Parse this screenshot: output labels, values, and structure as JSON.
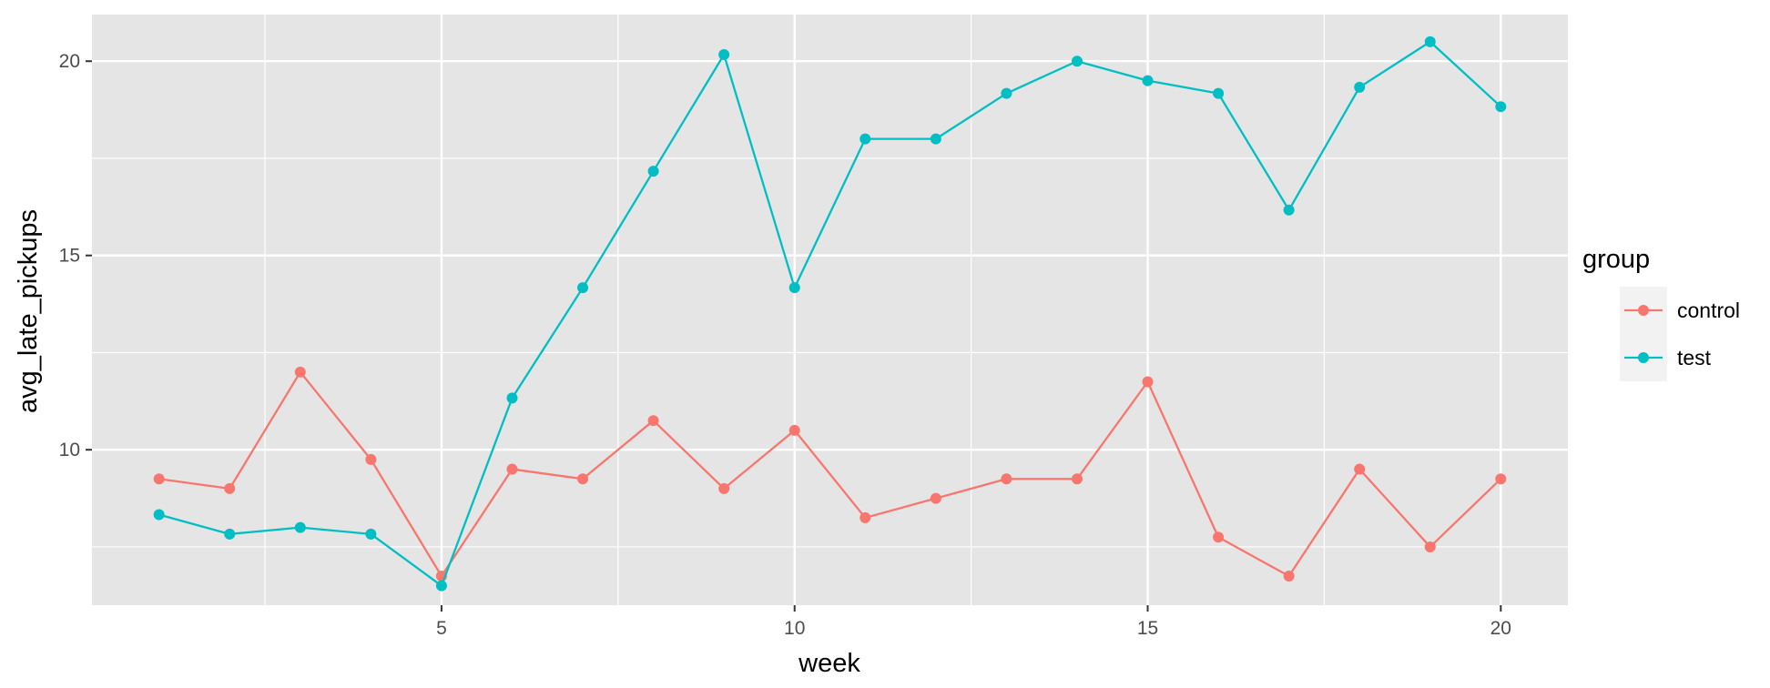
{
  "chart_data": {
    "type": "line",
    "xlabel": "week",
    "ylabel": "avg_late_pickups",
    "x": [
      1,
      2,
      3,
      4,
      5,
      6,
      7,
      8,
      9,
      10,
      11,
      12,
      13,
      14,
      15,
      16,
      17,
      18,
      19,
      20
    ],
    "xlim": [
      0.05,
      20.95
    ],
    "ylim": [
      6.0,
      21.2
    ],
    "xticks": [
      5,
      10,
      15,
      20
    ],
    "yticks": [
      10,
      15,
      20
    ],
    "xtick_labels": [
      "5",
      "10",
      "15",
      "20"
    ],
    "ytick_labels": [
      "10",
      "15",
      "20"
    ],
    "grid": true,
    "legend": {
      "title": "group",
      "position": "right"
    },
    "series": [
      {
        "name": "control",
        "color": "#F8766D",
        "values": [
          9.25,
          9.0,
          12.0,
          9.75,
          6.75,
          9.5,
          9.25,
          10.75,
          9.0,
          10.5,
          8.25,
          8.75,
          9.25,
          9.25,
          11.75,
          7.75,
          6.75,
          9.5,
          7.5,
          9.25
        ]
      },
      {
        "name": "test",
        "color": "#00BFC4",
        "values": [
          8.33,
          7.83,
          8.0,
          7.83,
          6.5,
          11.33,
          14.17,
          17.17,
          20.17,
          14.17,
          18.0,
          18.0,
          19.17,
          20.0,
          19.5,
          19.17,
          16.17,
          19.33,
          20.5,
          18.83
        ]
      }
    ]
  }
}
